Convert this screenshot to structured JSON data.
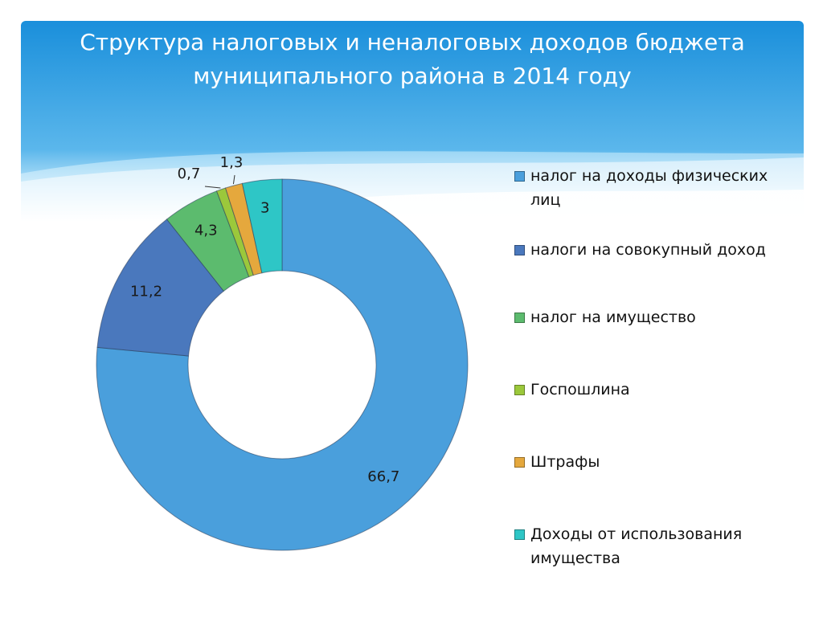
{
  "slide": {
    "title_line1": "Структура налоговых и неналоговых доходов бюджета",
    "title_line2": "муниципального района в 2014 году"
  },
  "colors": {
    "banner_top": "#1a8fdb",
    "banner_bottom": "#7fcdf5",
    "wave": "#cdeefe"
  },
  "chart_data": {
    "type": "pie",
    "variant": "doughnut",
    "start": "top, clockwise",
    "legend_position": "right",
    "categories": [
      "налог на доходы физических лиц",
      "налоги на совокупный доход",
      "налог на имущество",
      "Госпошлина",
      "Штрафы",
      "Доходы от использования имущества"
    ],
    "values": [
      66.7,
      11.2,
      4.3,
      0.7,
      1.3,
      3
    ],
    "labels": [
      "66,7",
      "11,2",
      "4,3",
      "0,7",
      "1,3",
      "3"
    ],
    "colors": [
      "#4a9fdc",
      "#4a78bd",
      "#5cbb6e",
      "#9bc83b",
      "#e5a83d",
      "#2ec6c6"
    ]
  }
}
